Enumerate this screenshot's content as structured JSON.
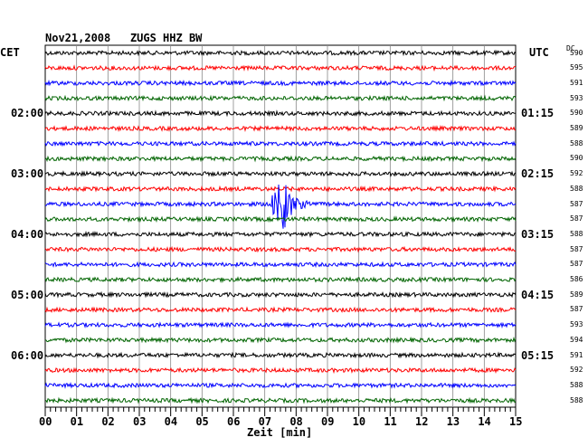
{
  "header": {
    "date": "Nov21,2008",
    "station": "ZUGS HHZ BW",
    "left_zone": "CET",
    "right_zone": "UTC",
    "dc_label": "DC"
  },
  "chart_data": {
    "type": "line",
    "title": "Nov21,2008   ZUGS HHZ BW",
    "xlabel": "Zeit [min]",
    "x_ticks": [
      "00",
      "01",
      "02",
      "03",
      "04",
      "05",
      "06",
      "07",
      "08",
      "09",
      "10",
      "11",
      "12",
      "13",
      "14",
      "15"
    ],
    "xlim": [
      0,
      15
    ],
    "grid": true,
    "trace_count": 24,
    "trace_colors": [
      "#000000",
      "#ff0000",
      "#0000ff",
      "#006400"
    ],
    "left_time_labels": [
      {
        "label": "02:00",
        "trace": 4
      },
      {
        "label": "03:00",
        "trace": 8
      },
      {
        "label": "04:00",
        "trace": 12
      },
      {
        "label": "05:00",
        "trace": 16
      },
      {
        "label": "06:00",
        "trace": 20
      }
    ],
    "right_time_labels": [
      {
        "label": "01:15",
        "trace": 4
      },
      {
        "label": "02:15",
        "trace": 8
      },
      {
        "label": "03:15",
        "trace": 12
      },
      {
        "label": "04:15",
        "trace": 16
      },
      {
        "label": "05:15",
        "trace": 20
      }
    ],
    "dc_values": [
      "590",
      "595",
      "591",
      "593",
      "590",
      "589",
      "588",
      "590",
      "592",
      "588",
      "587",
      "587",
      "588",
      "587",
      "587",
      "586",
      "589",
      "587",
      "593",
      "594",
      "591",
      "592",
      "588",
      "588"
    ],
    "event": {
      "trace": 10,
      "minute": 7.6,
      "label": ""
    }
  }
}
